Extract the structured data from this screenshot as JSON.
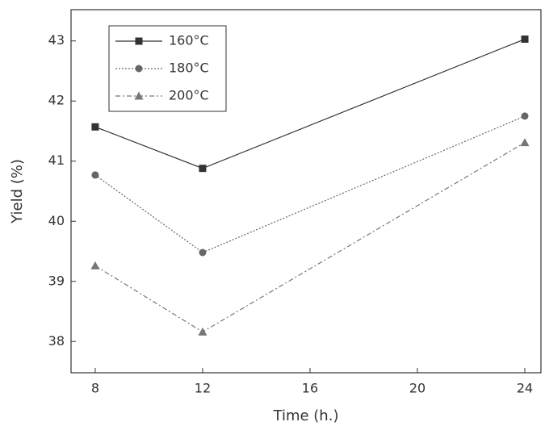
{
  "chart_data": {
    "type": "line",
    "x_label": "Time (h.)",
    "y_label": "Yield (%)",
    "x": [
      8,
      12,
      24
    ],
    "series": [
      {
        "name": "160°C",
        "color": "#333333",
        "marker": "square",
        "dash": "solid",
        "values": [
          41.57,
          40.88,
          43.03
        ]
      },
      {
        "name": "180°C",
        "color": "#666666",
        "marker": "circle",
        "dash": "dotted",
        "values": [
          40.77,
          39.48,
          41.75
        ]
      },
      {
        "name": "200°C",
        "color": "#777777",
        "marker": "triangle",
        "dash": "dashdot",
        "values": [
          39.26,
          38.16,
          41.31
        ]
      }
    ],
    "xlim": [
      7.1,
      24.6
    ],
    "xticks": [
      8,
      12,
      16,
      20,
      24
    ],
    "ylim": [
      37.48,
      43.52
    ],
    "yticks": [
      38,
      39,
      40,
      41,
      42,
      43
    ],
    "legend": "upper left",
    "grid": false
  }
}
